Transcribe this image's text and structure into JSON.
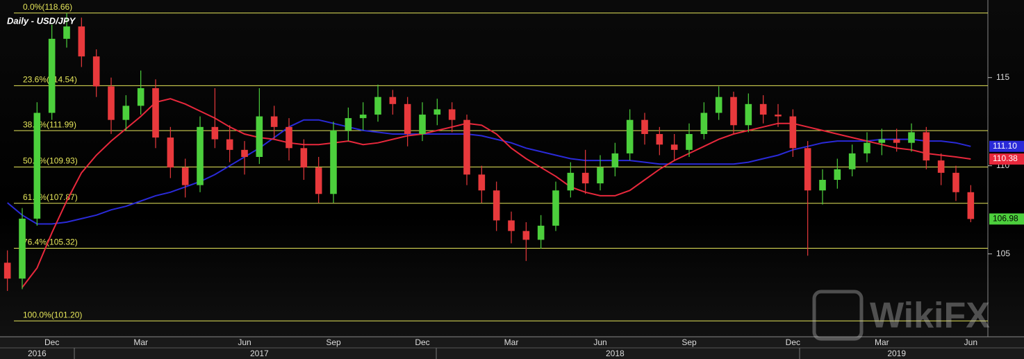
{
  "chart_data": {
    "type": "candlestick",
    "title": "Daily - USD/JPY",
    "watermark": "WikiFX",
    "categories": [
      null,
      null,
      null,
      "Dec",
      null,
      null,
      null,
      null,
      null,
      "Mar",
      null,
      null,
      null,
      null,
      null,
      null,
      "Jun",
      null,
      null,
      null,
      null,
      null,
      "Sep",
      null,
      null,
      null,
      null,
      null,
      "Dec",
      null,
      null,
      null,
      null,
      null,
      "Mar",
      null,
      null,
      null,
      null,
      null,
      "Jun",
      null,
      null,
      null,
      null,
      null,
      "Sep",
      null,
      null,
      null,
      null,
      null,
      null,
      "Dec",
      null,
      null,
      null,
      null,
      null,
      "Mar",
      null,
      null,
      null,
      null,
      null,
      "Jun"
    ],
    "years": [
      null,
      null,
      "2016",
      null,
      null,
      null,
      null,
      null,
      null,
      null,
      null,
      null,
      null,
      null,
      null,
      null,
      null,
      "2017",
      null,
      null,
      null,
      null,
      null,
      null,
      null,
      null,
      null,
      null,
      null,
      null,
      null,
      null,
      null,
      null,
      null,
      null,
      null,
      null,
      null,
      null,
      null,
      "2018",
      null,
      null,
      null,
      null,
      null,
      null,
      null,
      null,
      null,
      null,
      null,
      null,
      null,
      null,
      null,
      null,
      null,
      null,
      "2019",
      null,
      null,
      null,
      null,
      null
    ],
    "candles": {
      "up_color": "#4ccf3c",
      "down_color": "#e8393c",
      "open": [
        104.5,
        103.6,
        107.0,
        113.0,
        117.2,
        117.9,
        116.2,
        114.5,
        112.6,
        113.4,
        114.4,
        111.6,
        109.9,
        108.9,
        112.2,
        111.5,
        110.9,
        110.5,
        112.8,
        112.2,
        111.0,
        109.9,
        108.4,
        112.0,
        112.7,
        112.9,
        113.9,
        113.5,
        111.8,
        112.9,
        113.2,
        112.6,
        109.5,
        108.6,
        106.9,
        106.3,
        105.8,
        106.6,
        108.6,
        109.6,
        109.0,
        109.9,
        110.7,
        112.6,
        111.8,
        111.2,
        110.9,
        111.8,
        113.0,
        113.9,
        112.3,
        113.5,
        112.9,
        112.8,
        111.0,
        108.6,
        109.2,
        109.8,
        110.7,
        111.3,
        111.5,
        111.3,
        111.9,
        110.3,
        109.6,
        108.5
      ],
      "high": [
        105.2,
        107.6,
        113.6,
        118.0,
        118.66,
        118.4,
        116.6,
        115.0,
        114.0,
        115.4,
        114.9,
        112.2,
        110.4,
        112.8,
        114.4,
        112.3,
        111.4,
        114.4,
        113.4,
        112.7,
        111.5,
        110.5,
        112.5,
        113.3,
        113.6,
        114.6,
        114.3,
        113.9,
        113.6,
        113.8,
        113.6,
        112.9,
        110.0,
        109.1,
        107.4,
        106.8,
        107.2,
        109.1,
        110.2,
        110.9,
        110.6,
        111.3,
        113.2,
        113.0,
        112.2,
        111.8,
        112.4,
        113.6,
        114.5,
        114.2,
        114.1,
        114.0,
        113.5,
        113.2,
        111.4,
        109.8,
        110.4,
        111.2,
        111.9,
        112.1,
        112.1,
        112.4,
        112.2,
        110.7,
        110.0,
        108.9
      ],
      "low": [
        102.9,
        103.0,
        106.6,
        112.6,
        116.7,
        115.6,
        113.9,
        111.8,
        112.0,
        112.9,
        111.0,
        109.3,
        108.2,
        108.5,
        111.0,
        110.2,
        109.5,
        110.1,
        111.5,
        110.3,
        109.2,
        107.9,
        107.9,
        111.4,
        112.0,
        112.5,
        112.9,
        111.1,
        111.4,
        112.3,
        111.9,
        108.9,
        107.9,
        106.3,
        105.6,
        104.6,
        105.3,
        106.3,
        108.2,
        108.4,
        108.6,
        109.4,
        110.3,
        111.2,
        110.6,
        110.3,
        110.5,
        111.5,
        112.6,
        111.8,
        111.9,
        112.4,
        112.2,
        110.5,
        104.9,
        107.8,
        108.7,
        109.4,
        110.2,
        110.6,
        110.8,
        110.8,
        109.8,
        108.9,
        108.0,
        106.8
      ],
      "close": [
        103.6,
        107.0,
        113.0,
        117.2,
        117.9,
        116.2,
        114.5,
        112.6,
        113.4,
        114.4,
        111.6,
        109.9,
        108.9,
        112.2,
        111.5,
        110.9,
        110.5,
        112.8,
        112.2,
        111.0,
        109.9,
        108.4,
        112.0,
        112.7,
        112.9,
        113.9,
        113.5,
        111.8,
        112.9,
        113.2,
        112.6,
        109.5,
        108.6,
        106.9,
        106.3,
        105.8,
        106.6,
        108.6,
        109.6,
        109.0,
        109.9,
        110.7,
        112.6,
        111.8,
        111.2,
        110.9,
        111.8,
        113.0,
        113.9,
        112.3,
        113.5,
        112.9,
        112.8,
        111.0,
        108.6,
        109.2,
        109.8,
        110.7,
        111.3,
        111.5,
        111.3,
        111.9,
        110.3,
        109.6,
        108.5,
        106.98
      ]
    },
    "lines": [
      {
        "color": "#2a2ad8",
        "values": [
          107.9,
          107.2,
          106.7,
          106.7,
          106.8,
          107.0,
          107.2,
          107.5,
          107.7,
          108.0,
          108.3,
          108.5,
          108.8,
          109.1,
          109.5,
          110.0,
          110.5,
          111.0,
          111.6,
          112.2,
          112.6,
          112.6,
          112.4,
          112.2,
          112.0,
          111.9,
          111.8,
          111.8,
          111.8,
          111.8,
          111.8,
          111.8,
          111.7,
          111.5,
          111.3,
          111.0,
          110.8,
          110.6,
          110.4,
          110.3,
          110.3,
          110.3,
          110.3,
          110.2,
          110.1,
          110.1,
          110.1,
          110.1,
          110.1,
          110.1,
          110.2,
          110.4,
          110.6,
          110.9,
          111.1,
          111.3,
          111.4,
          111.4,
          111.4,
          111.5,
          111.5,
          111.5,
          111.4,
          111.4,
          111.3,
          111.1
        ],
        "value_labels": [
          null,
          null,
          null,
          null,
          null,
          null,
          null,
          null,
          null,
          null,
          null,
          null,
          null,
          null,
          null,
          null,
          null,
          null,
          null,
          null,
          null,
          null,
          null,
          null,
          null,
          null,
          null,
          null,
          null,
          null,
          null,
          null,
          null,
          null,
          null,
          null,
          null,
          null,
          null,
          null,
          null,
          null,
          null,
          null,
          null,
          null,
          null,
          null,
          null,
          null,
          null,
          null,
          null,
          null,
          null,
          null,
          null,
          null,
          null,
          null,
          null,
          null,
          null,
          null,
          null,
          "111.10"
        ]
      },
      {
        "color": "#e8283c",
        "values": [
          null,
          103.1,
          104.2,
          106.2,
          108.0,
          109.6,
          110.6,
          111.4,
          112.1,
          112.8,
          113.6,
          113.8,
          113.5,
          113.1,
          112.7,
          112.2,
          111.8,
          111.6,
          111.5,
          111.3,
          111.2,
          111.2,
          111.3,
          111.4,
          111.2,
          111.3,
          111.5,
          111.7,
          111.8,
          112.0,
          112.2,
          112.4,
          112.3,
          111.8,
          111.0,
          110.4,
          109.9,
          109.4,
          108.8,
          108.5,
          108.3,
          108.3,
          108.6,
          109.2,
          109.8,
          110.3,
          110.7,
          111.1,
          111.5,
          111.8,
          112.0,
          112.2,
          112.4,
          112.4,
          112.2,
          112.0,
          111.8,
          111.6,
          111.4,
          111.2,
          111.0,
          110.9,
          110.7,
          110.6,
          110.5,
          110.38
        ]
      }
    ],
    "fib_color": "#e6e65a",
    "fib_levels": [
      {
        "label": "0.0%(118.66)",
        "value": 118.66
      },
      {
        "label": "23.6%(114.54)",
        "value": 114.54
      },
      {
        "label": "38.2%(111.99)",
        "value": 111.99
      },
      {
        "label": "50.0%(109.93)",
        "value": 109.93
      },
      {
        "label": "61.8%(107.87)",
        "value": 107.87
      },
      {
        "label": "76.4%(105.32)",
        "value": 105.32
      },
      {
        "label": "100.0%(101.20)",
        "value": 101.2
      }
    ],
    "ylim": [
      100.3,
      119.4
    ],
    "yticks": [
      105,
      110,
      115
    ]
  }
}
